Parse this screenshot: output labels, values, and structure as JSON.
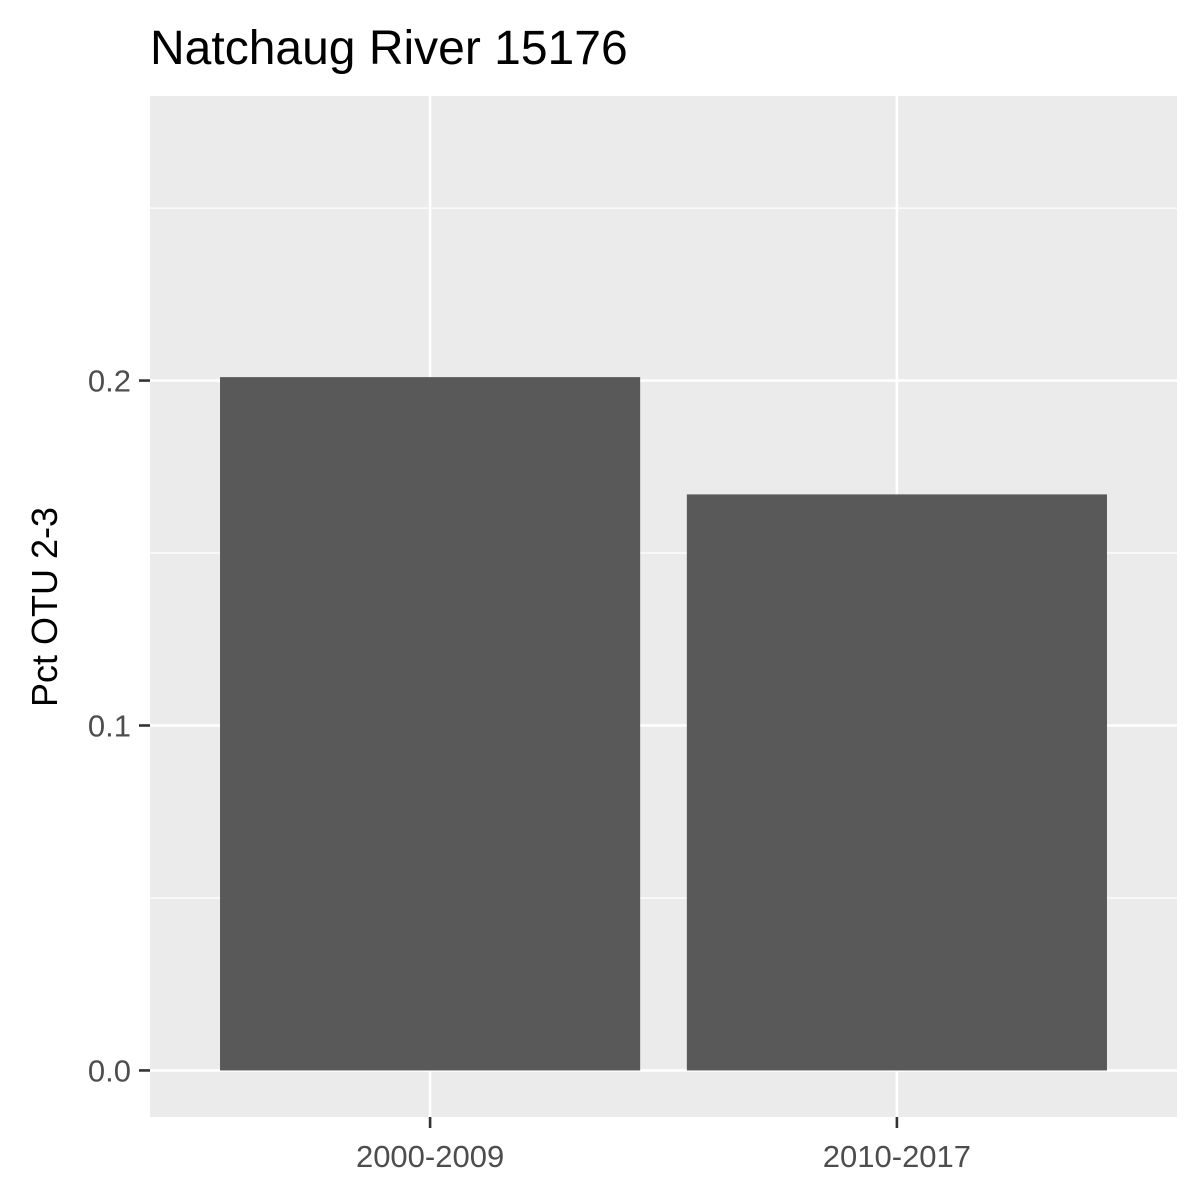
{
  "chart_data": {
    "type": "bar",
    "title": "Natchaug River 15176",
    "xlabel": "",
    "ylabel": "Pct OTU 2-3",
    "categories": [
      "2000-2009",
      "2010-2017"
    ],
    "values": [
      0.201,
      0.167
    ],
    "ylim": [
      -0.0135,
      0.2825
    ],
    "yticks": [
      0.0,
      0.1,
      0.2
    ],
    "ytick_labels": [
      "0.0",
      "0.1",
      "0.2"
    ],
    "grid": true,
    "legend": "none",
    "colors": {
      "bar": "#595959",
      "panel_background": "#ebebeb",
      "grid": "#ffffff",
      "tick_text": "#4d4d4d",
      "tick_mark": "#333333"
    }
  }
}
